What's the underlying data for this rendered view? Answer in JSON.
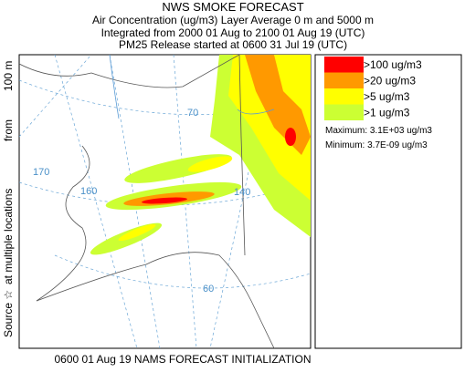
{
  "header": {
    "title": "NWS SMOKE FORECAST",
    "lines": [
      "Air Concentration (ug/m3) Layer Average    0 m and  5000 m",
      "Integrated from 2000 01 Aug to 2100 01 Aug 19 (UTC)",
      "PM25 Release started at 0600 31 Jul 19 (UTC)"
    ]
  },
  "legend": {
    "entries": [
      {
        "label": ">100 ug/m3",
        "color": "#ff0000"
      },
      {
        "label": ">20 ug/m3",
        "color": "#ff9900"
      },
      {
        "label": ">5 ug/m3",
        "color": "#ffff00"
      },
      {
        "label": ">1 ug/m3",
        "color": "#ccff33"
      }
    ],
    "maximum": "Maximum: 3.1E+03 ug/m3",
    "minimum": "Minimum: 3.7E-09 ug/m3"
  },
  "side_label": [
    "Source ☆",
    "at multiple locations",
    "from",
    "100 m"
  ],
  "map_labels": [
    "70",
    "170",
    "160",
    "140",
    "60"
  ],
  "footer": "0600 01 Aug 19 NAMS FORECAST INITIALIZATION"
}
